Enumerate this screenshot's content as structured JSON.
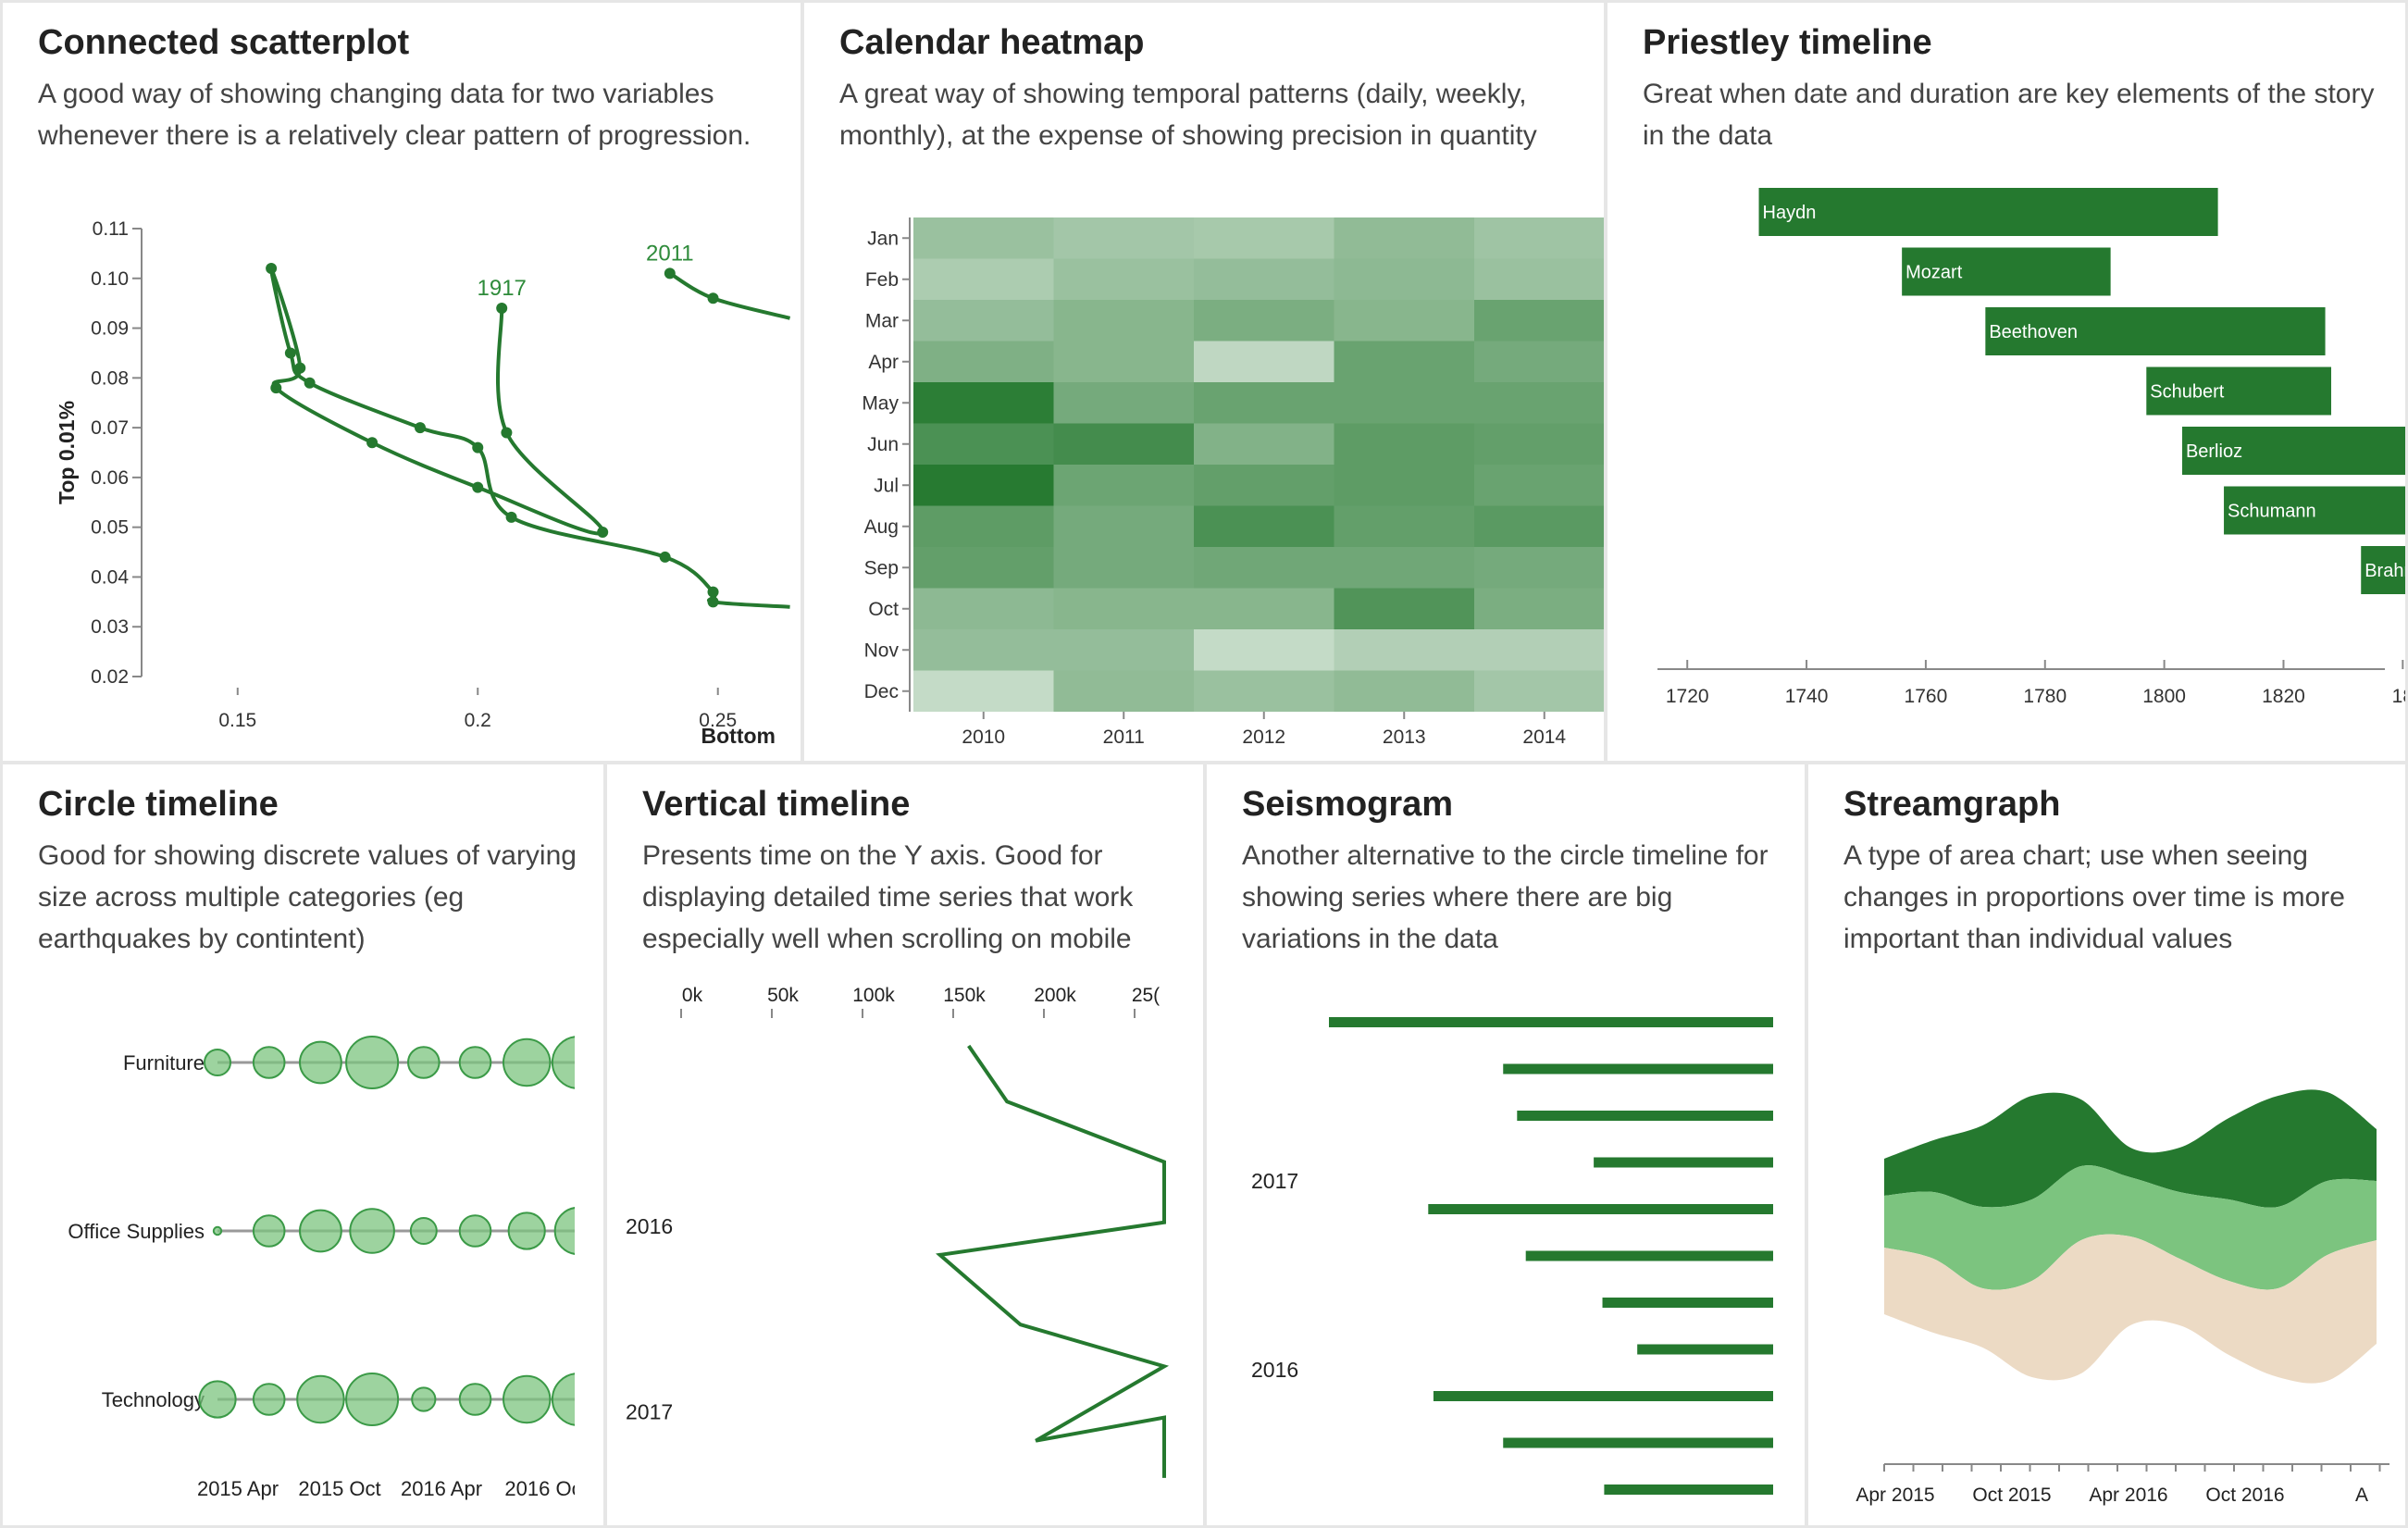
{
  "colors": {
    "green_dark": "#25792f",
    "green_mid": "#3b9a47",
    "green_light": "#7cc47f",
    "tan": "#ecdac4",
    "accent": "#2e8b3a"
  },
  "panels": {
    "connected": {
      "title": "Connected scatterplot",
      "desc": "A good way of showing changing data for two variables whenever there is a relatively clear pattern of progression."
    },
    "heatmap": {
      "title": "Calendar heatmap",
      "desc": "A great way of showing temporal patterns (daily, weekly, monthly), at the expense of showing precision in quantity"
    },
    "priestley": {
      "title": "Priestley timeline",
      "desc": "Great when date and duration are key elements of the story in the data"
    },
    "circle": {
      "title": "Circle timeline",
      "desc": "Good for showing discrete values of varying size across multiple categories (eg earthquakes by contintent)"
    },
    "vertical": {
      "title": "Vertical timeline",
      "desc": "Presents time on the Y axis. Good for displaying detailed time series that work especially well when scrolling on mobile"
    },
    "seismogram": {
      "title": "Seismogram",
      "desc": "Another alternative to the circle timeline for showing series where there are big variations in the data"
    },
    "streamgraph": {
      "title": "Streamgraph",
      "desc": "A type of area chart; use when seeing changes in proportions over time is more important than individual values"
    }
  },
  "chart_data": [
    {
      "type": "scatter",
      "id": "connected",
      "xlabel": "Bottom",
      "ylabel": "Top 0.01%",
      "xlim": [
        0.13,
        0.262
      ],
      "ylim": [
        0.02,
        0.11
      ],
      "xticks": [
        0.15,
        0.2,
        0.25
      ],
      "yticks": [
        0.02,
        0.03,
        0.04,
        0.05,
        0.06,
        0.07,
        0.08,
        0.09,
        0.1,
        0.11
      ],
      "series": [
        {
          "points": [
            [
              0.205,
              0.094
            ],
            [
              0.206,
              0.069
            ],
            [
              0.226,
              0.049
            ],
            [
              0.2,
              0.058
            ],
            [
              0.178,
              0.067
            ],
            [
              0.158,
              0.078
            ],
            [
              0.163,
              0.082
            ],
            [
              0.157,
              0.102
            ],
            [
              0.161,
              0.085
            ],
            [
              0.165,
              0.079
            ],
            [
              0.188,
              0.07
            ],
            [
              0.2,
              0.066
            ],
            [
              0.207,
              0.052
            ],
            [
              0.239,
              0.044
            ],
            [
              0.249,
              0.037
            ],
            [
              0.249,
              0.035
            ],
            [
              0.265,
              0.034
            ]
          ]
        },
        {
          "points": [
            [
              0.24,
              0.101
            ],
            [
              0.249,
              0.096
            ],
            [
              0.265,
              0.092
            ]
          ]
        }
      ],
      "annotations": [
        {
          "label": "1917",
          "x": 0.205,
          "y": 0.094
        },
        {
          "label": "2011",
          "x": 0.24,
          "y": 0.101
        }
      ]
    },
    {
      "type": "heatmap",
      "id": "heatmap",
      "x": [
        "2010",
        "2011",
        "2012",
        "2013",
        "2014"
      ],
      "y": [
        "Jan",
        "Feb",
        "Mar",
        "Apr",
        "May",
        "Jun",
        "Jul",
        "Aug",
        "Sep",
        "Oct",
        "Nov",
        "Dec"
      ],
      "values": [
        [
          0.35,
          0.3,
          0.28,
          0.4,
          0.32
        ],
        [
          0.25,
          0.35,
          0.38,
          0.42,
          0.35
        ],
        [
          0.38,
          0.45,
          0.52,
          0.45,
          0.62
        ],
        [
          0.5,
          0.45,
          0.15,
          0.62,
          0.55
        ],
        [
          0.95,
          0.55,
          0.62,
          0.62,
          0.62
        ],
        [
          0.78,
          0.82,
          0.48,
          0.68,
          0.65
        ],
        [
          0.98,
          0.6,
          0.65,
          0.68,
          0.62
        ],
        [
          0.68,
          0.55,
          0.78,
          0.65,
          0.7
        ],
        [
          0.65,
          0.55,
          0.58,
          0.58,
          0.55
        ],
        [
          0.42,
          0.45,
          0.45,
          0.75,
          0.52
        ],
        [
          0.38,
          0.38,
          0.12,
          0.22,
          0.22
        ],
        [
          0.12,
          0.4,
          0.35,
          0.4,
          0.3
        ]
      ]
    },
    {
      "type": "bar",
      "id": "priestley",
      "xlim": [
        1715,
        1837
      ],
      "xticks": [
        "1720",
        "1740",
        "1760",
        "1780",
        "1800",
        "1820",
        "18"
      ],
      "series": [
        {
          "name": "Haydn",
          "start": 1732,
          "end": 1809
        },
        {
          "name": "Mozart",
          "start": 1756,
          "end": 1791
        },
        {
          "name": "Beethoven",
          "start": 1770,
          "end": 1827
        },
        {
          "name": "Schubert",
          "start": 1797,
          "end": 1828
        },
        {
          "name": "Berlioz",
          "start": 1803,
          "end": 1869
        },
        {
          "name": "Schumann",
          "start": 1810,
          "end": 1856
        },
        {
          "name": "Brahms",
          "start": 1833,
          "end": 1897
        }
      ]
    },
    {
      "type": "scatter",
      "id": "circle",
      "categories": [
        "Furniture",
        "Office Supplies",
        "Technology"
      ],
      "xticks": [
        "2015 Apr",
        "2015 Oct",
        "2016 Apr",
        "2016 Oc"
      ],
      "series": [
        {
          "name": "Furniture",
          "values": [
            0.5,
            0.6,
            0.8,
            1.0,
            0.6,
            0.6,
            0.9,
            1.0
          ]
        },
        {
          "name": "Office Supplies",
          "values": [
            0.15,
            0.6,
            0.8,
            0.85,
            0.5,
            0.6,
            0.7,
            0.9
          ]
        },
        {
          "name": "Technology",
          "values": [
            0.7,
            0.6,
            0.9,
            1.0,
            0.45,
            0.6,
            0.9,
            1.0
          ]
        }
      ]
    },
    {
      "type": "line",
      "id": "vertical",
      "xticks": [
        "0k",
        "50k",
        "100k",
        "150k",
        "200k",
        "25("
      ],
      "xlim": [
        0,
        252000
      ],
      "ylabels": [
        {
          "label": "2016",
          "t": 0.42
        },
        {
          "label": "2017",
          "t": 0.82
        }
      ],
      "points": [
        [
          150000,
          0.0
        ],
        [
          170000,
          0.12
        ],
        [
          252000,
          0.25
        ],
        [
          252000,
          0.38
        ],
        [
          135000,
          0.45
        ],
        [
          177000,
          0.6
        ],
        [
          252000,
          0.69
        ],
        [
          185000,
          0.85
        ],
        [
          252000,
          0.8
        ],
        [
          252000,
          0.93
        ]
      ]
    },
    {
      "type": "bar",
      "id": "seismogram",
      "ylabels": [
        {
          "label": "2017",
          "t": 0.33
        },
        {
          "label": "2016",
          "t": 0.67
        }
      ],
      "values": [
        255000,
        155000,
        147000,
        103000,
        198000,
        142000,
        98000,
        78000,
        195000,
        155000,
        97000,
        83000
      ]
    },
    {
      "type": "area",
      "id": "streamgraph",
      "xticks": [
        "Apr 2015",
        "Oct 2015",
        "Apr 2016",
        "Oct 2016",
        "A"
      ],
      "series": [
        {
          "values": [
            10,
            14,
            22,
            28,
            18,
            8,
            12,
            22,
            30,
            24,
            14
          ]
        },
        {
          "values": [
            14,
            18,
            22,
            22,
            20,
            16,
            18,
            22,
            22,
            20,
            16
          ]
        },
        {
          "values": [
            18,
            20,
            16,
            26,
            36,
            24,
            18,
            20,
            24,
            34,
            28
          ]
        }
      ]
    }
  ]
}
